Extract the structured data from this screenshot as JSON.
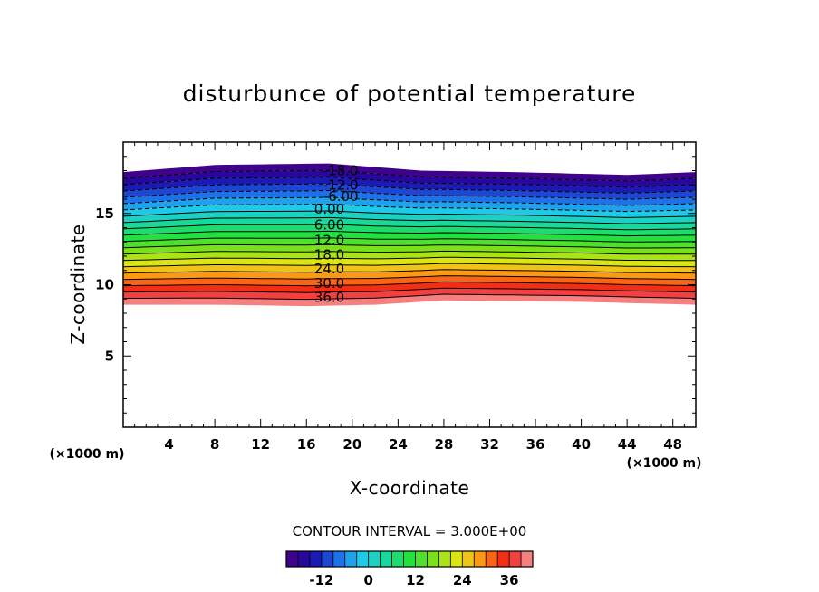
{
  "chart_data": {
    "type": "contour",
    "title": "disturbunce of potential temperature",
    "xlabel": "X-coordinate",
    "ylabel": "Z-coordinate",
    "x_unit": "(×1000 m)",
    "y_unit": "(×1000 m)",
    "xlim": [
      0,
      50
    ],
    "ylim": [
      0,
      20
    ],
    "x_ticks": [
      "4",
      "8",
      "12",
      "16",
      "20",
      "24",
      "28",
      "32",
      "36",
      "40",
      "44",
      "48"
    ],
    "y_ticks": [
      "5",
      "10",
      "15"
    ],
    "contour_interval_text": "CONTOUR INTERVAL = 3.000E+00",
    "contour_interval": 3,
    "value_range": [
      -21,
      42
    ],
    "negative_contours_dashed": true,
    "layer_top_z": [
      [
        0,
        17.9
      ],
      [
        8,
        18.4
      ],
      [
        18,
        18.5
      ],
      [
        26,
        18.0
      ],
      [
        34,
        17.9
      ],
      [
        44,
        17.7
      ],
      [
        50,
        17.9
      ]
    ],
    "layer_bottom_z": [
      [
        0,
        8.6
      ],
      [
        8,
        8.6
      ],
      [
        16,
        8.5
      ],
      [
        22,
        8.6
      ],
      [
        28,
        8.9
      ],
      [
        40,
        8.8
      ],
      [
        50,
        8.6
      ]
    ],
    "contour_labels": [
      {
        "text": "-18.0",
        "value": -18,
        "x": 19,
        "z": 18.0
      },
      {
        "text": "-12.0",
        "value": -12,
        "x": 19,
        "z": 17.0
      },
      {
        "text": "-6.00",
        "value": -6,
        "x": 19,
        "z": 16.2
      },
      {
        "text": "0.00",
        "value": 0,
        "x": 18,
        "z": 15.3
      },
      {
        "text": "6.00",
        "value": 6,
        "x": 18,
        "z": 14.2
      },
      {
        "text": "12.0",
        "value": 12,
        "x": 18,
        "z": 13.1
      },
      {
        "text": "18.0",
        "value": 18,
        "x": 18,
        "z": 12.1
      },
      {
        "text": "24.0",
        "value": 24,
        "x": 18,
        "z": 11.1
      },
      {
        "text": "30.0",
        "value": 30,
        "x": 18,
        "z": 10.1
      },
      {
        "text": "36.0",
        "value": 36,
        "x": 18,
        "z": 9.1
      }
    ],
    "colorbar": {
      "ticks": [
        "-12",
        "0",
        "12",
        "24",
        "36"
      ],
      "tick_values": [
        -12,
        0,
        12,
        24,
        36
      ],
      "range": [
        -21,
        42
      ]
    },
    "colormap": [
      "#4a0080",
      "#1a0aa8",
      "#1e64e6",
      "#1ec8f0",
      "#18d8a0",
      "#22e040",
      "#7ee018",
      "#e6e614",
      "#ff8c14",
      "#f01818",
      "#f8a0a0"
    ]
  }
}
